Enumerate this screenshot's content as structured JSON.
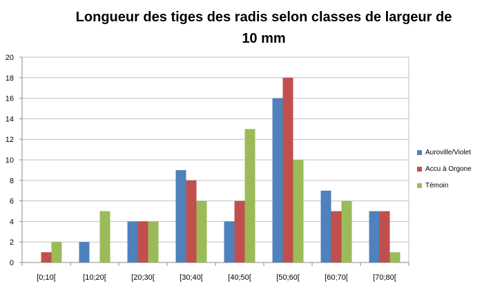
{
  "chart_data": {
    "type": "bar",
    "title": "Longueur des tiges des radis selon classes de largeur de 10 mm",
    "categories": [
      "[0;10[",
      "[10;20[",
      "[20;30[",
      "[30;40[",
      "[40;50[",
      "[50;60[",
      "[60;70[",
      "[70;80["
    ],
    "series": [
      {
        "name": "Auroville/Violet",
        "color": "#4F81BD",
        "values": [
          0,
          2,
          4,
          9,
          4,
          16,
          7,
          5
        ]
      },
      {
        "name": "Accu à Orgone",
        "color": "#C0504D",
        "values": [
          1,
          0,
          4,
          8,
          6,
          18,
          5,
          5
        ]
      },
      {
        "name": "Témoin",
        "color": "#9BBB59",
        "values": [
          2,
          5,
          4,
          6,
          13,
          10,
          6,
          1
        ]
      }
    ],
    "ylim": [
      0,
      20
    ],
    "yticks": [
      0,
      2,
      4,
      6,
      8,
      10,
      12,
      14,
      16,
      18,
      20
    ],
    "grid": true,
    "legend_position": "right"
  }
}
